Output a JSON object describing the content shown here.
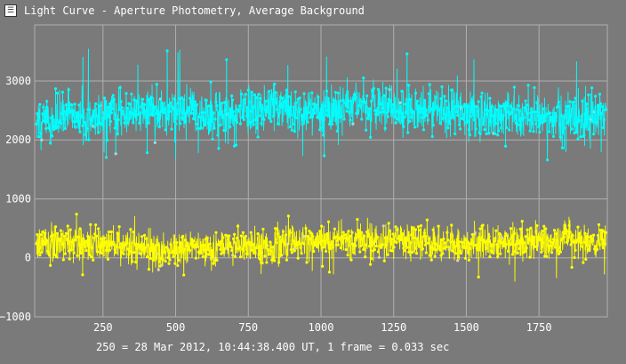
{
  "window": {
    "title": "Light Curve - Aperture Photometry, Average Background",
    "icon": "light-curve-app-icon"
  },
  "footer_text": "250 = 28 Mar 2012, 10:44:38.400 UT, 1 frame = 0.033 sec",
  "colors": {
    "background": "#7a7a7a",
    "grid": "#b0b0b0",
    "series_cyan": "#00ffff",
    "series_yellow": "#ffff00",
    "highlight": "#cfcfcf"
  },
  "chart_data": {
    "type": "scatter",
    "title": "",
    "xlabel": "",
    "ylabel": "",
    "xlim": [
      15,
      1985
    ],
    "ylim": [
      -1000,
      3950
    ],
    "x_ticks": [
      250,
      500,
      750,
      1000,
      1250,
      1500,
      1750
    ],
    "y_ticks": [
      -1000,
      0,
      1000,
      2000,
      3000
    ],
    "x_tick_labels": [
      "250",
      "500",
      "750",
      "1000",
      "1250",
      "1500",
      "1750"
    ],
    "y_tick_labels": [
      "−1000",
      "0",
      "1000",
      "2000",
      "3000"
    ],
    "grid": true,
    "series": [
      {
        "color": "#00ffff",
        "x_start": 20,
        "x_end": 1980,
        "trend_x": [
          20,
          200,
          400,
          600,
          800,
          1000,
          1200,
          1400,
          1600,
          1800,
          1980
        ],
        "trend_y": [
          2350,
          2400,
          2470,
          2420,
          2500,
          2480,
          2550,
          2480,
          2430,
          2400,
          2380
        ],
        "typical_range": [
          1900,
          3000
        ],
        "min_outlier": 1600,
        "max_outlier": 3550
      },
      {
        "color": "#ffff00",
        "x_start": 20,
        "x_end": 1980,
        "trend_x": [
          20,
          200,
          400,
          600,
          800,
          1000,
          1200,
          1400,
          1600,
          1800,
          1980
        ],
        "trend_y": [
          250,
          220,
          150,
          170,
          220,
          280,
          300,
          280,
          260,
          290,
          250
        ],
        "typical_range": [
          -200,
          600
        ],
        "min_outlier": -400,
        "max_outlier": 750
      }
    ]
  }
}
